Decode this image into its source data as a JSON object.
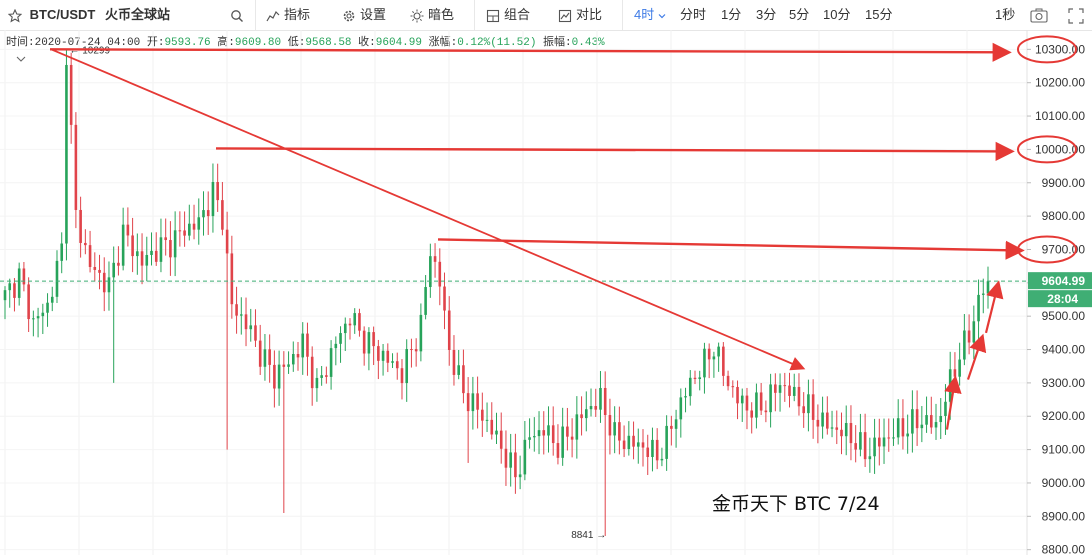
{
  "toolbar": {
    "pair": "BTC/USDT",
    "exchange": "火币全球站",
    "menu_indicators": "指标",
    "menu_settings": "设置",
    "menu_dark": "暗色",
    "menu_combo": "组合",
    "menu_compare": "对比",
    "interval_active": "4时",
    "intervals": [
      "分时",
      "1分",
      "3分",
      "5分",
      "10分",
      "15分"
    ],
    "second_interval": "1秒",
    "icons": [
      "star-icon",
      "search-icon",
      "indicator-icon",
      "gear-icon",
      "moon-icon",
      "grid-icon",
      "compare-icon",
      "camera-icon",
      "fullscreen-icon"
    ]
  },
  "ohlc_bar": {
    "time_label": "时间:",
    "time": "2020-07-24 04:00",
    "open_label": "开:",
    "open": "9593.76",
    "high_label": "高:",
    "high": "9609.80",
    "low_label": "低:",
    "low": "9568.58",
    "close_label": "收:",
    "close": "9604.99",
    "change_label": "涨幅:",
    "change": "0.12%(11.52)",
    "amp_label": "振幅:",
    "amp": "0.43%"
  },
  "colors": {
    "up": "#27a35a",
    "down": "#e0434a",
    "annotation": "#e53935",
    "last_price": "#3fae74"
  },
  "chart_data": {
    "type": "candlestick",
    "y_ticks": [
      "10300.00",
      "10200.00",
      "10100.00",
      "10000.00",
      "9900.00",
      "9800.00",
      "9700.00",
      "9600.00",
      "9500.00",
      "9400.00",
      "9300.00",
      "9200.00",
      "9100.00",
      "9000.00",
      "8900.00",
      "8800.00"
    ],
    "ylim": [
      8790,
      10310
    ],
    "last_price": "9604.99",
    "countdown": "28:04",
    "high_marker": "10299",
    "low_marker": "8841",
    "watermark": "金币天下  BTC 7/24",
    "anchors": [
      [
        0,
        9560
      ],
      [
        3,
        9620
      ],
      [
        6,
        9480
      ],
      [
        9,
        9530
      ],
      [
        12,
        9700
      ],
      [
        13,
        10299
      ],
      [
        15,
        9800
      ],
      [
        18,
        9650
      ],
      [
        22,
        9590
      ],
      [
        25,
        9750
      ],
      [
        29,
        9660
      ],
      [
        32,
        9700
      ],
      [
        35,
        9720
      ],
      [
        38,
        9760
      ],
      [
        41,
        9780
      ],
      [
        44,
        9870
      ],
      [
        46,
        9800
      ],
      [
        48,
        9530
      ],
      [
        51,
        9480
      ],
      [
        54,
        9390
      ],
      [
        57,
        9320
      ],
      [
        60,
        9360
      ],
      [
        63,
        9420
      ],
      [
        66,
        9280
      ],
      [
        70,
        9420
      ],
      [
        73,
        9500
      ],
      [
        76,
        9430
      ],
      [
        80,
        9380
      ],
      [
        84,
        9330
      ],
      [
        88,
        9470
      ],
      [
        90,
        9700
      ],
      [
        92,
        9600
      ],
      [
        94,
        9400
      ],
      [
        97,
        9270
      ],
      [
        100,
        9220
      ],
      [
        103,
        9160
      ],
      [
        106,
        9080
      ],
      [
        108,
        9020
      ],
      [
        111,
        9140
      ],
      [
        114,
        9160
      ],
      [
        117,
        9110
      ],
      [
        120,
        9160
      ],
      [
        123,
        9220
      ],
      [
        126,
        9250
      ],
      [
        129,
        9140
      ],
      [
        132,
        9120
      ],
      [
        135,
        9110
      ],
      [
        138,
        9080
      ],
      [
        140,
        9130
      ],
      [
        142,
        9210
      ],
      [
        145,
        9300
      ],
      [
        148,
        9360
      ],
      [
        150,
        9410
      ],
      [
        152,
        9330
      ],
      [
        155,
        9250
      ],
      [
        158,
        9220
      ],
      [
        161,
        9240
      ],
      [
        164,
        9300
      ],
      [
        167,
        9260
      ],
      [
        170,
        9220
      ],
      [
        173,
        9180
      ],
      [
        176,
        9160
      ],
      [
        179,
        9140
      ],
      [
        182,
        9090
      ],
      [
        185,
        9120
      ],
      [
        188,
        9150
      ],
      [
        191,
        9170
      ],
      [
        194,
        9190
      ],
      [
        197,
        9170
      ],
      [
        200,
        9300
      ],
      [
        202,
        9390
      ],
      [
        204,
        9440
      ],
      [
        206,
        9550
      ],
      [
        208,
        9604.99
      ]
    ],
    "annotations": {
      "horizontal_levels": [
        10300,
        10000,
        9700
      ],
      "circled_ticks": [
        "10300.00",
        "10000.00",
        "9700.00"
      ]
    }
  }
}
